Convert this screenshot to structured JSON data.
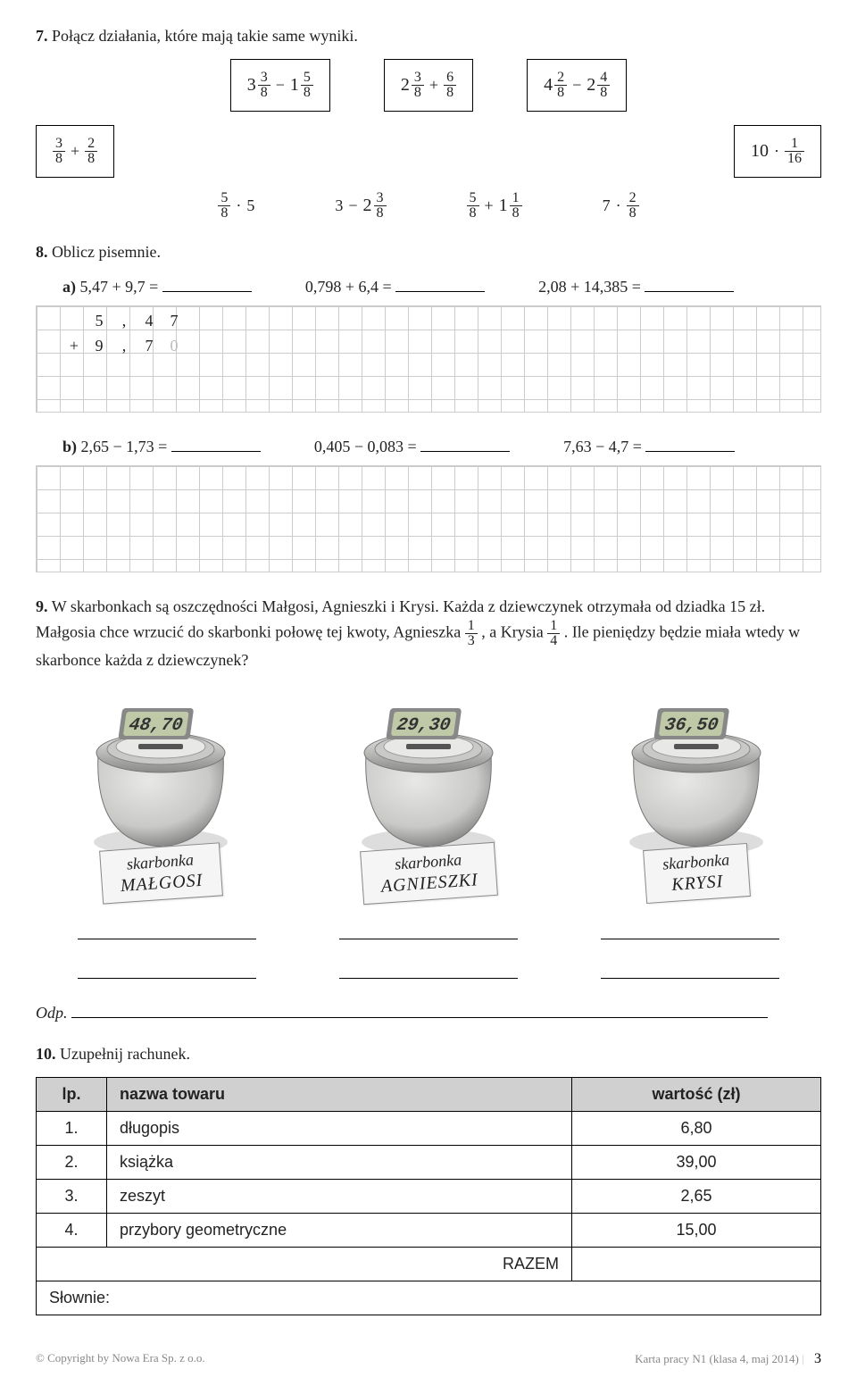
{
  "task7": {
    "num": "7.",
    "text": "Połącz działania, které mają takie same wyniki.",
    "row1": [
      {
        "a_w": "3",
        "a_n": "3",
        "a_d": "8",
        "op": "−",
        "b_w": "1",
        "b_n": "5",
        "b_d": "8"
      },
      {
        "a_w": "2",
        "a_n": "3",
        "a_d": "8",
        "op": "+",
        "b_w": "",
        "b_n": "6",
        "b_d": "8"
      },
      {
        "a_w": "4",
        "a_n": "2",
        "a_d": "8",
        "op": "−",
        "b_w": "2",
        "b_n": "4",
        "b_d": "8"
      }
    ],
    "left_box": {
      "a_n": "3",
      "a_d": "8",
      "op": "+",
      "b_n": "2",
      "b_d": "8"
    },
    "right_box": {
      "a": "10",
      "op": "·",
      "b_n": "1",
      "b_d": "16"
    },
    "row2": [
      {
        "type": "fm",
        "a_n": "5",
        "a_d": "8",
        "op": "·",
        "b": "5"
      },
      {
        "type": "mf",
        "a": "3",
        "op": "−",
        "b_w": "2",
        "b_n": "3",
        "b_d": "8"
      },
      {
        "type": "ff",
        "a_n": "5",
        "a_d": "8",
        "op": "+",
        "b_w": "1",
        "b_n": "1",
        "b_d": "8"
      },
      {
        "type": "nm",
        "a": "7",
        "op": "·",
        "b_n": "2",
        "b_d": "8"
      }
    ]
  },
  "task8": {
    "num": "8.",
    "text": "Oblicz pisemnie.",
    "a_label": "a)",
    "a": [
      {
        "lhs": "5,47 + 9,7 =",
        "blank": true
      },
      {
        "lhs": "0,798 + 6,4 =",
        "blank": true
      },
      {
        "lhs": "2,08 + 14,385 =",
        "blank": true
      }
    ],
    "grid_a": {
      "r1": [
        "",
        "5",
        ",",
        "4",
        "7"
      ],
      "r2": [
        "+",
        "9",
        ",",
        "7",
        "0"
      ],
      "faded_col": 4
    },
    "b_label": "b)",
    "b": [
      {
        "lhs": "2,65 − 1,73 =",
        "blank": true
      },
      {
        "lhs": "0,405 − 0,083 =",
        "blank": true
      },
      {
        "lhs": "7,63 − 4,7 =",
        "blank": true
      }
    ]
  },
  "task9": {
    "num": "9.",
    "text_p1": "W skarbonkach są oszczędności Małgosi, Agnieszki i Krysi. Każda z dziewczynek otrzymała od dziadka 15 zł. Małgosia chce wrzucić do skarbonki połowę tej kwoty, Agnieszka ",
    "f1_n": "1",
    "f1_d": "3",
    "text_p2": ", a Krysia ",
    "f2_n": "1",
    "f2_d": "4",
    "text_p3": ". Ile pieniędzy będzie miała wtedy w skarbonce każda z dziewczynek?",
    "jars": [
      {
        "display": "48,70",
        "label_top": "skarbonka",
        "label_name": "MAŁGOSI"
      },
      {
        "display": "29,30",
        "label_top": "skarbonka",
        "label_name": "AGNIESZKI"
      },
      {
        "display": "36,50",
        "label_top": "skarbonka",
        "label_name": "KRYSI"
      }
    ],
    "odp_label": "Odp."
  },
  "task10": {
    "num": "10.",
    "text": "Uzupełnij rachunek.",
    "head_lp": "lp.",
    "head_name": "nazwa towaru",
    "head_val": "wartość (zł)",
    "rows": [
      {
        "lp": "1.",
        "name": "długopis",
        "val": "6,80"
      },
      {
        "lp": "2.",
        "name": "książka",
        "val": "39,00"
      },
      {
        "lp": "3.",
        "name": "zeszyt",
        "val": "2,65"
      },
      {
        "lp": "4.",
        "name": "przybory geometryczne",
        "val": "15,00"
      }
    ],
    "razem": "RAZEM",
    "slownie": "Słownie:"
  },
  "footer": {
    "left": "© Copyright by Nowa Era Sp. z o.o.",
    "right": "Karta pracy N1 (klasa 4, maj 2014)",
    "page": "3"
  },
  "colors": {
    "jar_body": "#c9cac8",
    "jar_shadow": "#8a8a88",
    "jar_highlight": "#e8e8e6",
    "lcd_bg": "#bfc9a8",
    "lcd_text": "#333"
  }
}
